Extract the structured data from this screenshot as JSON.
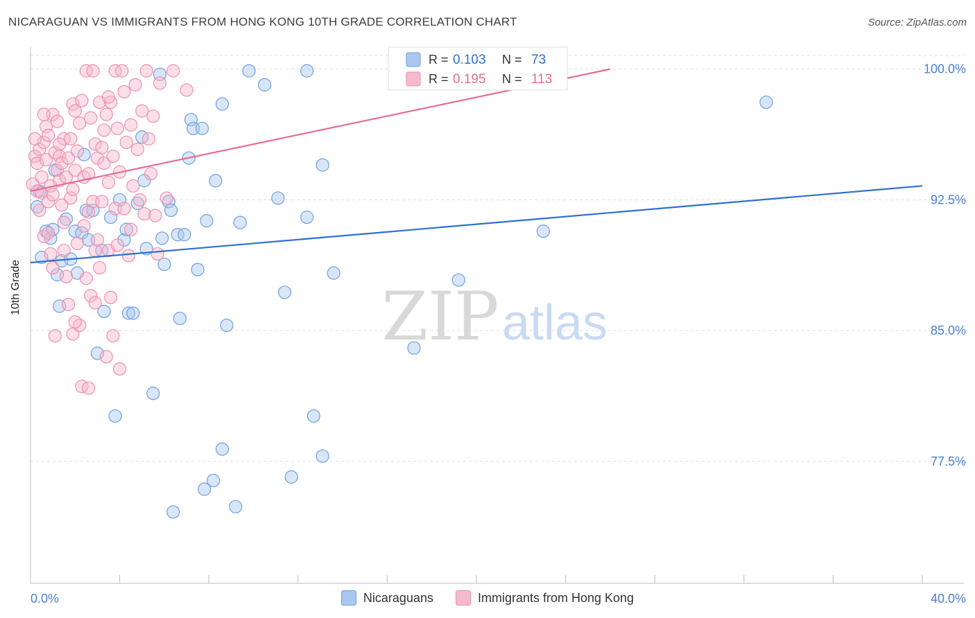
{
  "title": "NICARAGUAN VS IMMIGRANTS FROM HONG KONG 10TH GRADE CORRELATION CHART",
  "source": "Source: ZipAtlas.com",
  "watermark": {
    "zip": "ZIP",
    "atlas": "atlas"
  },
  "colors": {
    "blue_fill": "#a9c7f0",
    "blue_stroke": "#6e9fe0",
    "blue_line": "#2f6fcf",
    "pink_fill": "#f7b9cd",
    "pink_stroke": "#ec8fae",
    "pink_line": "#e46c95",
    "tick_label": "#4a7fd4",
    "grid": "#dddddd"
  },
  "stats_legend": [
    {
      "r_label": "R =",
      "r_value": "0.103",
      "n_label": "N =",
      "n_value": "73",
      "color": "blue"
    },
    {
      "r_label": "R =",
      "r_value": "0.195",
      "n_label": "N =",
      "n_value": "113",
      "color": "pink"
    }
  ],
  "chart_data": {
    "type": "scatter",
    "title": "NICARAGUAN VS IMMIGRANTS FROM HONG KONG 10TH GRADE CORRELATION CHART",
    "xlabel": "",
    "ylabel": "10th Grade",
    "xlim": [
      0,
      40
    ],
    "ylim": [
      70.5,
      101.5
    ],
    "x_tick_labels": [
      "0.0%",
      "40.0%"
    ],
    "y_ticks": [
      77.5,
      85.0,
      92.5,
      100.0
    ],
    "y_tick_labels": [
      "77.5%",
      "85.0%",
      "92.5%",
      "100.0%"
    ],
    "grid": true,
    "legend_position": "top-center",
    "series": [
      {
        "name": "Nicaraguans",
        "color": "blue",
        "trend": {
          "x": [
            0,
            40
          ],
          "y": [
            88.9,
            93.3
          ]
        },
        "points": [
          [
            0.3,
            92.1
          ],
          [
            0.5,
            89.2
          ],
          [
            0.7,
            90.7
          ],
          [
            0.9,
            90.3
          ],
          [
            1.0,
            90.8
          ],
          [
            1.2,
            88.2
          ],
          [
            1.3,
            86.4
          ],
          [
            1.4,
            89.0
          ],
          [
            1.6,
            91.4
          ],
          [
            1.8,
            89.1
          ],
          [
            2.0,
            90.7
          ],
          [
            2.1,
            88.3
          ],
          [
            2.3,
            90.6
          ],
          [
            2.5,
            91.9
          ],
          [
            2.6,
            90.2
          ],
          [
            2.8,
            91.9
          ],
          [
            3.0,
            83.7
          ],
          [
            3.2,
            89.6
          ],
          [
            3.3,
            86.1
          ],
          [
            3.6,
            91.5
          ],
          [
            3.8,
            80.1
          ],
          [
            4.0,
            92.5
          ],
          [
            4.2,
            90.2
          ],
          [
            4.3,
            90.8
          ],
          [
            4.4,
            86.0
          ],
          [
            4.6,
            86.0
          ],
          [
            4.8,
            92.3
          ],
          [
            5.0,
            96.1
          ],
          [
            5.1,
            93.6
          ],
          [
            5.2,
            89.7
          ],
          [
            5.5,
            81.4
          ],
          [
            5.8,
            99.7
          ],
          [
            5.9,
            90.3
          ],
          [
            6.0,
            88.8
          ],
          [
            6.2,
            92.4
          ],
          [
            6.3,
            91.9
          ],
          [
            6.4,
            74.6
          ],
          [
            6.6,
            90.5
          ],
          [
            6.7,
            85.7
          ],
          [
            6.9,
            90.5
          ],
          [
            7.1,
            94.9
          ],
          [
            7.2,
            97.1
          ],
          [
            7.3,
            96.6
          ],
          [
            7.5,
            88.5
          ],
          [
            7.7,
            96.6
          ],
          [
            7.8,
            75.9
          ],
          [
            7.9,
            91.3
          ],
          [
            8.2,
            76.4
          ],
          [
            8.3,
            93.6
          ],
          [
            8.6,
            98.0
          ],
          [
            8.6,
            78.2
          ],
          [
            8.8,
            85.3
          ],
          [
            9.2,
            74.9
          ],
          [
            9.4,
            91.2
          ],
          [
            9.8,
            99.9
          ],
          [
            10.5,
            99.1
          ],
          [
            11.1,
            92.6
          ],
          [
            11.4,
            87.2
          ],
          [
            11.7,
            76.6
          ],
          [
            12.4,
            91.5
          ],
          [
            12.4,
            99.9
          ],
          [
            12.7,
            80.1
          ],
          [
            13.1,
            77.8
          ],
          [
            13.1,
            94.5
          ],
          [
            13.6,
            88.3
          ],
          [
            17.2,
            84.0
          ],
          [
            18.3,
            99.9
          ],
          [
            19.2,
            87.9
          ],
          [
            23.0,
            90.7
          ],
          [
            33.0,
            98.1
          ],
          [
            0.4,
            93.0
          ],
          [
            1.1,
            94.2
          ],
          [
            2.4,
            95.1
          ]
        ]
      },
      {
        "name": "Immigrants from Hong Kong",
        "color": "pink",
        "trend": {
          "x": [
            0,
            26
          ],
          "y": [
            93.0,
            100.0
          ]
        },
        "points": [
          [
            0.1,
            93.4
          ],
          [
            0.2,
            95.0
          ],
          [
            0.3,
            94.6
          ],
          [
            0.3,
            93.0
          ],
          [
            0.4,
            95.4
          ],
          [
            0.5,
            93.8
          ],
          [
            0.5,
            92.9
          ],
          [
            0.6,
            95.8
          ],
          [
            0.6,
            90.4
          ],
          [
            0.7,
            96.7
          ],
          [
            0.7,
            94.8
          ],
          [
            0.8,
            92.4
          ],
          [
            0.8,
            96.2
          ],
          [
            0.9,
            93.3
          ],
          [
            0.9,
            89.4
          ],
          [
            1.0,
            97.4
          ],
          [
            1.0,
            92.8
          ],
          [
            1.1,
            95.2
          ],
          [
            1.1,
            84.7
          ],
          [
            1.2,
            94.2
          ],
          [
            1.2,
            97.0
          ],
          [
            1.3,
            93.6
          ],
          [
            1.3,
            95.0
          ],
          [
            1.4,
            92.2
          ],
          [
            1.4,
            94.6
          ],
          [
            1.5,
            96.0
          ],
          [
            1.5,
            91.2
          ],
          [
            1.6,
            93.8
          ],
          [
            1.6,
            88.1
          ],
          [
            1.7,
            94.9
          ],
          [
            1.7,
            86.5
          ],
          [
            1.8,
            96.0
          ],
          [
            1.8,
            92.6
          ],
          [
            1.9,
            98.0
          ],
          [
            1.9,
            84.8
          ],
          [
            2.0,
            97.6
          ],
          [
            2.0,
            94.2
          ],
          [
            2.1,
            95.3
          ],
          [
            2.1,
            90.0
          ],
          [
            2.2,
            96.9
          ],
          [
            2.2,
            85.3
          ],
          [
            2.3,
            98.2
          ],
          [
            2.3,
            81.8
          ],
          [
            2.4,
            93.8
          ],
          [
            2.4,
            91.0
          ],
          [
            2.5,
            99.9
          ],
          [
            2.5,
            88.0
          ],
          [
            2.6,
            94.0
          ],
          [
            2.6,
            81.7
          ],
          [
            2.7,
            97.2
          ],
          [
            2.7,
            87.0
          ],
          [
            2.8,
            92.4
          ],
          [
            2.8,
            99.9
          ],
          [
            2.9,
            95.7
          ],
          [
            2.9,
            89.6
          ],
          [
            3.0,
            94.9
          ],
          [
            3.0,
            90.2
          ],
          [
            3.1,
            98.1
          ],
          [
            3.1,
            88.6
          ],
          [
            3.2,
            95.5
          ],
          [
            3.2,
            92.4
          ],
          [
            3.3,
            94.6
          ],
          [
            3.3,
            96.5
          ],
          [
            3.4,
            97.4
          ],
          [
            3.4,
            83.5
          ],
          [
            3.5,
            93.5
          ],
          [
            3.5,
            89.6
          ],
          [
            3.6,
            98.1
          ],
          [
            3.6,
            86.9
          ],
          [
            3.7,
            95.0
          ],
          [
            3.7,
            84.7
          ],
          [
            3.8,
            92.0
          ],
          [
            3.8,
            99.9
          ],
          [
            3.9,
            96.6
          ],
          [
            3.9,
            89.9
          ],
          [
            4.0,
            94.1
          ],
          [
            4.0,
            82.8
          ],
          [
            4.1,
            99.9
          ],
          [
            4.2,
            92.0
          ],
          [
            4.3,
            95.8
          ],
          [
            4.4,
            89.3
          ],
          [
            4.5,
            96.8
          ],
          [
            4.5,
            90.8
          ],
          [
            4.6,
            93.3
          ],
          [
            4.7,
            99.1
          ],
          [
            4.8,
            95.4
          ],
          [
            4.9,
            92.5
          ],
          [
            5.0,
            97.6
          ],
          [
            5.1,
            91.7
          ],
          [
            5.2,
            99.9
          ],
          [
            5.3,
            96.0
          ],
          [
            5.4,
            94.0
          ],
          [
            5.5,
            97.3
          ],
          [
            5.6,
            91.6
          ],
          [
            5.7,
            89.4
          ],
          [
            5.8,
            99.2
          ],
          [
            6.1,
            92.6
          ],
          [
            6.4,
            99.9
          ],
          [
            7.0,
            98.8
          ],
          [
            22.3,
            99.9
          ],
          [
            0.2,
            96.0
          ],
          [
            0.4,
            91.9
          ],
          [
            0.6,
            97.4
          ],
          [
            1.0,
            88.6
          ],
          [
            1.5,
            89.6
          ],
          [
            2.0,
            85.5
          ],
          [
            2.9,
            86.6
          ],
          [
            3.5,
            98.4
          ],
          [
            4.2,
            98.7
          ],
          [
            0.8,
            90.6
          ],
          [
            1.3,
            95.7
          ],
          [
            2.6,
            91.8
          ],
          [
            1.9,
            93.1
          ]
        ]
      }
    ]
  },
  "bottom_legend": [
    {
      "label": "Nicaraguans",
      "color": "blue"
    },
    {
      "label": "Immigrants from Hong Kong",
      "color": "pink"
    }
  ]
}
